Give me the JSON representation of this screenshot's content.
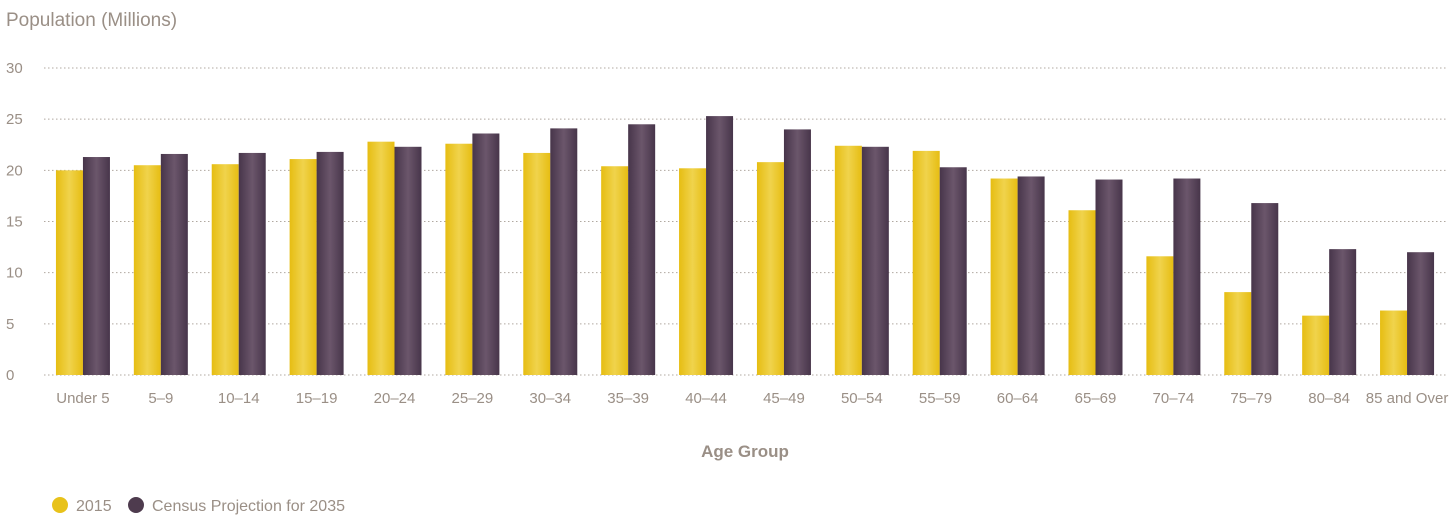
{
  "chart_data": {
    "type": "bar",
    "ylabel": "Population (Millions)",
    "xlabel": "Age Group",
    "ylim": [
      0,
      30
    ],
    "yticks": [
      0,
      5,
      10,
      15,
      20,
      25,
      30
    ],
    "grid": true,
    "legend_position": "bottom-left",
    "categories": [
      "Under 5",
      "5–9",
      "10–14",
      "15–19",
      "20–24",
      "25–29",
      "30–34",
      "35–39",
      "40–44",
      "45–49",
      "50–54",
      "55–59",
      "60–64",
      "65–69",
      "70–74",
      "75–79",
      "80–84",
      "85 and Over"
    ],
    "series": [
      {
        "name": "2015",
        "color": "#e8c21a",
        "values": [
          20.0,
          20.5,
          20.6,
          21.1,
          22.8,
          22.6,
          21.7,
          20.4,
          20.2,
          20.8,
          22.4,
          21.9,
          19.2,
          16.1,
          11.6,
          8.1,
          5.8,
          6.3
        ]
      },
      {
        "name": "Census Projection for 2035",
        "color": "#4e3b4e",
        "values": [
          21.3,
          21.6,
          21.7,
          21.8,
          22.3,
          23.6,
          24.1,
          24.5,
          25.3,
          24.0,
          22.3,
          20.3,
          19.4,
          19.1,
          19.2,
          16.8,
          12.3,
          12.0
        ]
      }
    ]
  }
}
